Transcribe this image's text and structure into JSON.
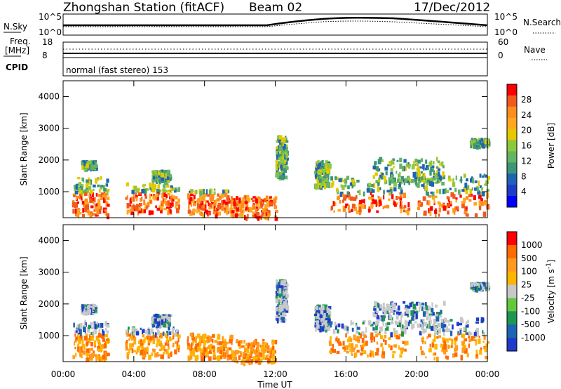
{
  "header": {
    "station": "Zhongshan Station (fitACF)",
    "beam": "Beam 02",
    "date": "17/Dec/2012"
  },
  "status_panels": {
    "nsky": {
      "label": "N.Sky",
      "ticks": [
        "10^5",
        "10^0"
      ]
    },
    "nsearch": {
      "label": "N.Search",
      "ticks": [
        "10^5",
        "10^0"
      ]
    },
    "freq": {
      "label_line1": "Freq.",
      "label_line2": "[MHz]",
      "ticks": [
        "18",
        "8"
      ]
    },
    "nave": {
      "label": "Nave",
      "ticks": [
        "60",
        "0"
      ]
    },
    "cpid": {
      "label": "CPID",
      "text": "normal (fast stereo) 153"
    }
  },
  "chart_data": [
    {
      "type": "heatmap",
      "title": "",
      "xlabel": "",
      "ylabel": "Slant Range [km]",
      "x": [
        "00:00",
        "04:00",
        "08:00",
        "12:00",
        "16:00",
        "20:00",
        "00:00"
      ],
      "y_ticks": [
        "4000",
        "3000",
        "2000",
        "1000"
      ],
      "ylim": [
        180,
        4500
      ],
      "xlim_hours": [
        0,
        24
      ],
      "colorbar": {
        "label": "Power [dB]",
        "ticks": [
          "28",
          "24",
          "20",
          "16",
          "12",
          "8",
          "4"
        ],
        "colors": [
          "#ff0000",
          "#f05a1e",
          "#ff8c1e",
          "#ffa81e",
          "#e6c800",
          "#8cc83c",
          "#64b464",
          "#3c9678",
          "#1e64b4",
          "#1e3cc8",
          "#0000ff"
        ]
      }
    },
    {
      "type": "heatmap",
      "title": "",
      "xlabel": "Time UT",
      "ylabel": "Slant Range [km]",
      "x": [
        "00:00",
        "04:00",
        "08:00",
        "12:00",
        "16:00",
        "20:00",
        "00:00"
      ],
      "y_ticks": [
        "4000",
        "3000",
        "2000",
        "1000"
      ],
      "ylim": [
        180,
        4500
      ],
      "xlim_hours": [
        0,
        24
      ],
      "colorbar": {
        "label": "Velocity [m s-1]",
        "label_main": "Velocity  [m s",
        "label_sup": "-1",
        "label_end": "]",
        "ticks": [
          "1000",
          "500",
          "100",
          "25",
          "-25",
          "-100",
          "-500",
          "-1000"
        ],
        "colors": [
          "#ff0000",
          "#ff6a00",
          "#ff9a1e",
          "#ffb400",
          "#c8c8c8",
          "#64c83c",
          "#1e9650",
          "#1e64b4",
          "#1e3cc8"
        ]
      }
    }
  ]
}
